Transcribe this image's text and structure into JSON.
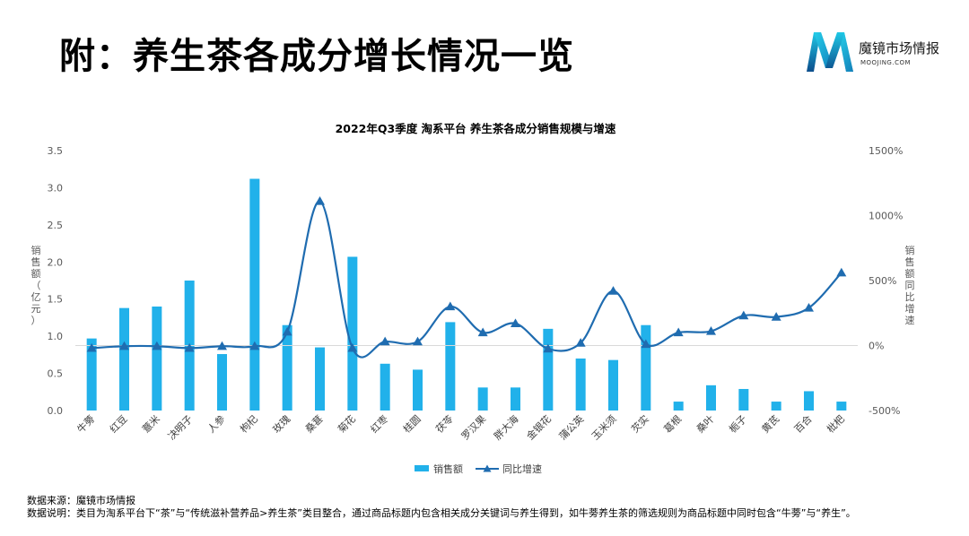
{
  "page": {
    "title": "附：养生茶各成分增长情况一览"
  },
  "logo": {
    "name": "魔镜市场情报",
    "sub": "MOOJING.COM",
    "colors": [
      "#1ec8e6",
      "#1591c9",
      "#0d4e8c"
    ]
  },
  "chart_data": {
    "type": "bar+line",
    "title": "2022年Q3季度 淘系平台 养生茶各成分销售规模与增速",
    "ylabel_left": "销售额（亿元）",
    "ylabel_right": "销售额同比增速",
    "ylim_left": [
      0,
      3.5
    ],
    "ylim_right": [
      -500,
      1500
    ],
    "left_ticks": [
      "0.0",
      "0.5",
      "1.0",
      "1.5",
      "2.0",
      "2.5",
      "3.0",
      "3.5"
    ],
    "right_ticks": [
      "-500%",
      "0%",
      "500%",
      "1000%",
      "1500%"
    ],
    "grid": false,
    "legend_position": "bottom",
    "categories": [
      "牛蒡",
      "红豆",
      "薏米",
      "决明子",
      "人参",
      "枸杞",
      "玫瑰",
      "桑葚",
      "菊花",
      "红枣",
      "桂圆",
      "茯苓",
      "罗汉果",
      "胖大海",
      "金银花",
      "蒲公英",
      "玉米须",
      "芡实",
      "葛根",
      "桑叶",
      "栀子",
      "黄芪",
      "百合",
      "枇杷"
    ],
    "series": [
      {
        "name": "销售额",
        "type": "bar",
        "color": "#21b1ea",
        "values": [
          0.97,
          1.38,
          1.4,
          1.75,
          0.76,
          3.12,
          1.15,
          0.85,
          2.07,
          0.63,
          0.55,
          1.19,
          0.31,
          0.31,
          1.1,
          0.7,
          0.68,
          1.15,
          0.12,
          0.34,
          0.29,
          0.12,
          0.26,
          0.12
        ]
      },
      {
        "name": "同比增速",
        "type": "line",
        "color": "#1f6cb0",
        "values": [
          -20,
          -5,
          -5,
          -20,
          -5,
          -5,
          105,
          1110,
          -20,
          30,
          30,
          300,
          100,
          170,
          -25,
          20,
          420,
          10,
          100,
          110,
          230,
          220,
          290,
          560
        ]
      }
    ]
  },
  "source": {
    "line1": "数据来源：魔镜市场情报",
    "line2": "数据说明：类目为淘系平台下“茶”与“传统滋补营养品>养生茶”类目整合，通过商品标题内包含相关成分关键词与养生得到，如牛蒡养生茶的筛选规则为商品标题中同时包含“牛蒡”与“养生”。"
  }
}
